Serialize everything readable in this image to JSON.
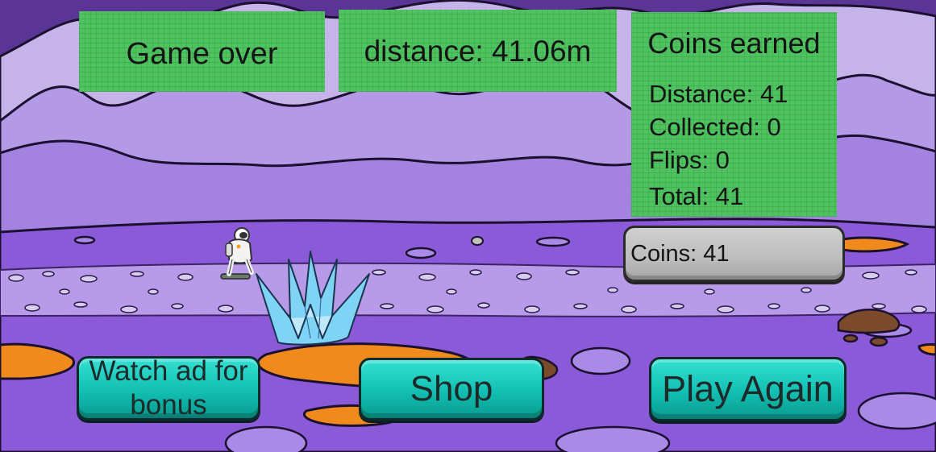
{
  "hud": {
    "game_over_label": "Game over",
    "distance_label": "distance: 41.06m"
  },
  "coins_panel": {
    "title": "Coins earned",
    "distance": "Distance: 41",
    "collected": "Collected: 0",
    "flips": "Flips: 0",
    "total": "Total: 41"
  },
  "coins_balance": "Coins: 41",
  "buttons": {
    "watch_ad_line1": "Watch ad for",
    "watch_ad_line2": "bonus",
    "shop": "Shop",
    "play_again": "Play Again"
  },
  "colors": {
    "panel_green": "#4ec35f",
    "button_teal": "#12bfb2",
    "ground_purple": "#8b5ad8",
    "sky_lavender": "#c6b3ea",
    "lava_orange": "#f08a1c",
    "crystal_blue": "#7fd3f5"
  },
  "icons": [
    "astronaut-icon",
    "ice-crystal-icon",
    "rock-icon"
  ]
}
